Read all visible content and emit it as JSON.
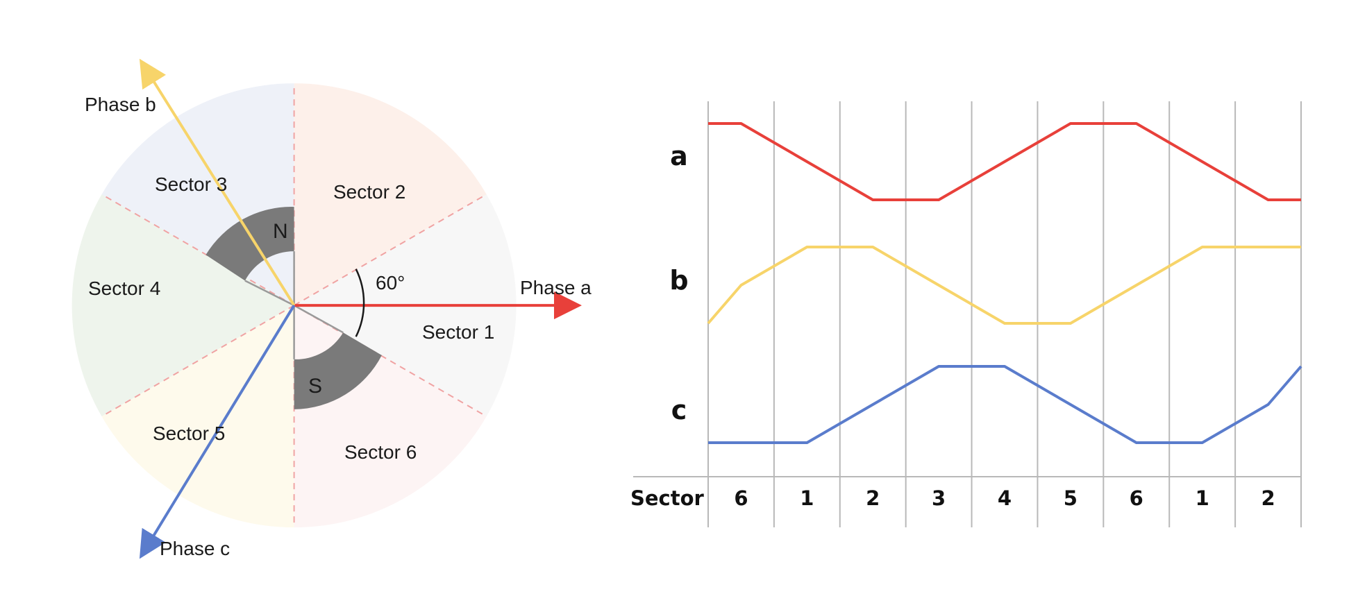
{
  "colors": {
    "phase_a": "#e8403a",
    "phase_b": "#f7d46a",
    "phase_c": "#5a7ccc",
    "pole": "#7a7a7a",
    "boundary": "#f0a3a3",
    "grid": "#b8b8b8"
  },
  "sector_diagram": {
    "sectors": [
      {
        "label": "Sector 1",
        "fill": "#f7f7f7"
      },
      {
        "label": "Sector 2",
        "fill": "#fdf0ea"
      },
      {
        "label": "Sector 3",
        "fill": "#eef1f8"
      },
      {
        "label": "Sector 4",
        "fill": "#eef4ec"
      },
      {
        "label": "Sector 5",
        "fill": "#fefaec"
      },
      {
        "label": "Sector 6",
        "fill": "#fdf4f4"
      }
    ],
    "phase_a_label": "Phase a",
    "phase_b_label": "Phase b",
    "phase_c_label": "Phase c",
    "angle_label": "60°",
    "north_label": "N",
    "south_label": "S"
  },
  "chart_data": {
    "type": "line",
    "xlabel": "Sector",
    "x": [
      "6",
      "1",
      "2",
      "3",
      "4",
      "5",
      "6",
      "1",
      "2"
    ],
    "series": [
      {
        "name": "a",
        "values": [
          1,
          0.5,
          0,
          0,
          0.5,
          1,
          1,
          0.5,
          0
        ],
        "start": 1,
        "end": 0
      },
      {
        "name": "b",
        "values": [
          0.5,
          1,
          1,
          0.5,
          0,
          0,
          0.5,
          1,
          1
        ],
        "start": 0,
        "end": 1
      },
      {
        "name": "c",
        "values": [
          0,
          0,
          0.5,
          1,
          1,
          0.5,
          0,
          0,
          0.5
        ],
        "start": 0,
        "end": 1
      }
    ]
  }
}
